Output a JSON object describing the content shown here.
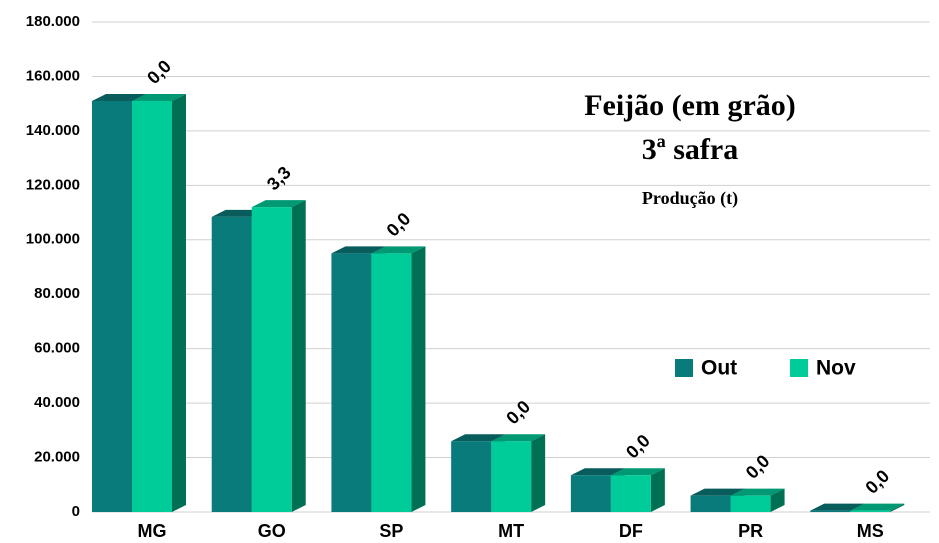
{
  "chart_data": {
    "type": "bar3d",
    "title": "Feijão (em grão)",
    "subtitle": "3ª safra",
    "y_label": "Produção (t)",
    "categories": [
      "MG",
      "GO",
      "SP",
      "MT",
      "DF",
      "PR",
      "MS"
    ],
    "series": [
      {
        "name": "Out",
        "color": "#0a7b7b",
        "values": [
          151000,
          108400,
          95000,
          26000,
          13500,
          6000,
          500
        ]
      },
      {
        "name": "Nov",
        "color": "#00cc99",
        "values": [
          151000,
          112000,
          95000,
          26000,
          13500,
          6000,
          500
        ]
      }
    ],
    "annotations": [
      "0,0",
      "3,3",
      "0,0",
      "0,0",
      "0,0",
      "0,0",
      "0,0"
    ],
    "ylim": [
      0,
      180000
    ],
    "yticks": [
      0,
      {
        "value": 20000,
        "label": "20.000"
      },
      {
        "value": 40000,
        "label": "40.000"
      },
      {
        "value": 60000,
        "label": "60.000"
      },
      {
        "value": 80000,
        "label": "80.000"
      },
      {
        "value": 100000,
        "label": "100.000"
      },
      {
        "value": 120000,
        "label": "120.000"
      },
      {
        "value": 140000,
        "label": "140.000"
      },
      {
        "value": 160000,
        "label": "160.000"
      },
      {
        "value": 180000,
        "label": "180.000"
      }
    ],
    "grid": true,
    "legend": "right"
  }
}
